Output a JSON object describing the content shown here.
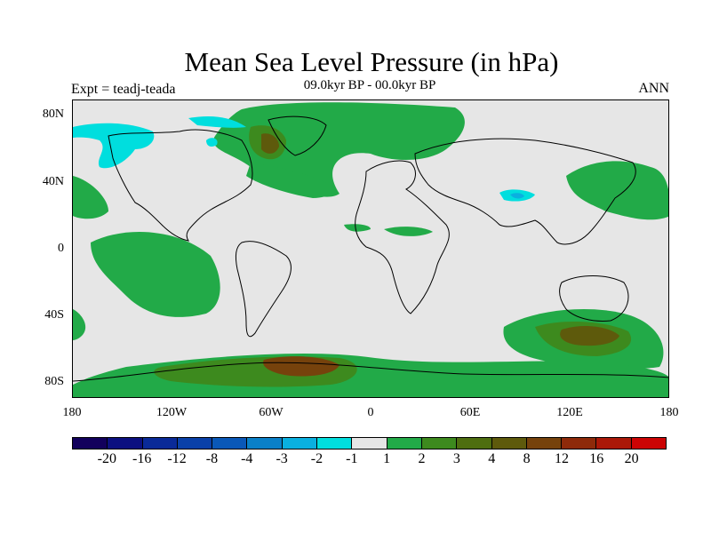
{
  "title": "Mean Sea Level Pressure (in hPa)",
  "subtitle": "09.0kyr BP - 00.0kyr BP",
  "left_label": "Expt = teadj-teada",
  "right_label": "ANN",
  "lat_labels": [
    "80N",
    "40N",
    "0",
    "40S",
    "80S"
  ],
  "lon_labels": [
    "180",
    "120W",
    "60W",
    "0",
    "60E",
    "120E",
    "180"
  ],
  "colorbar": {
    "colors": [
      "#12005c",
      "#0c1080",
      "#0a2a98",
      "#0a40a8",
      "#0a58b8",
      "#0a80c8",
      "#0ab0e0",
      "#00dede",
      "#e6e6e6",
      "#22aa48",
      "#3d8a1e",
      "#4e6e10",
      "#5e5a0c",
      "#76420c",
      "#8e2a0a",
      "#aa1808",
      "#cc0404"
    ],
    "labels": [
      "-20",
      "-16",
      "-12",
      "-8",
      "-4",
      "-3",
      "-2",
      "-1",
      "1",
      "2",
      "3",
      "4",
      "8",
      "12",
      "16",
      "20"
    ]
  },
  "colors": {
    "background": "#e6e6e6",
    "green": "#22aa48",
    "dark_green": "#3d8a1e",
    "olive": "#5e5a0c",
    "brown": "#76420c",
    "cyan": "#00dede",
    "light_blue": "#0ab0e0"
  }
}
